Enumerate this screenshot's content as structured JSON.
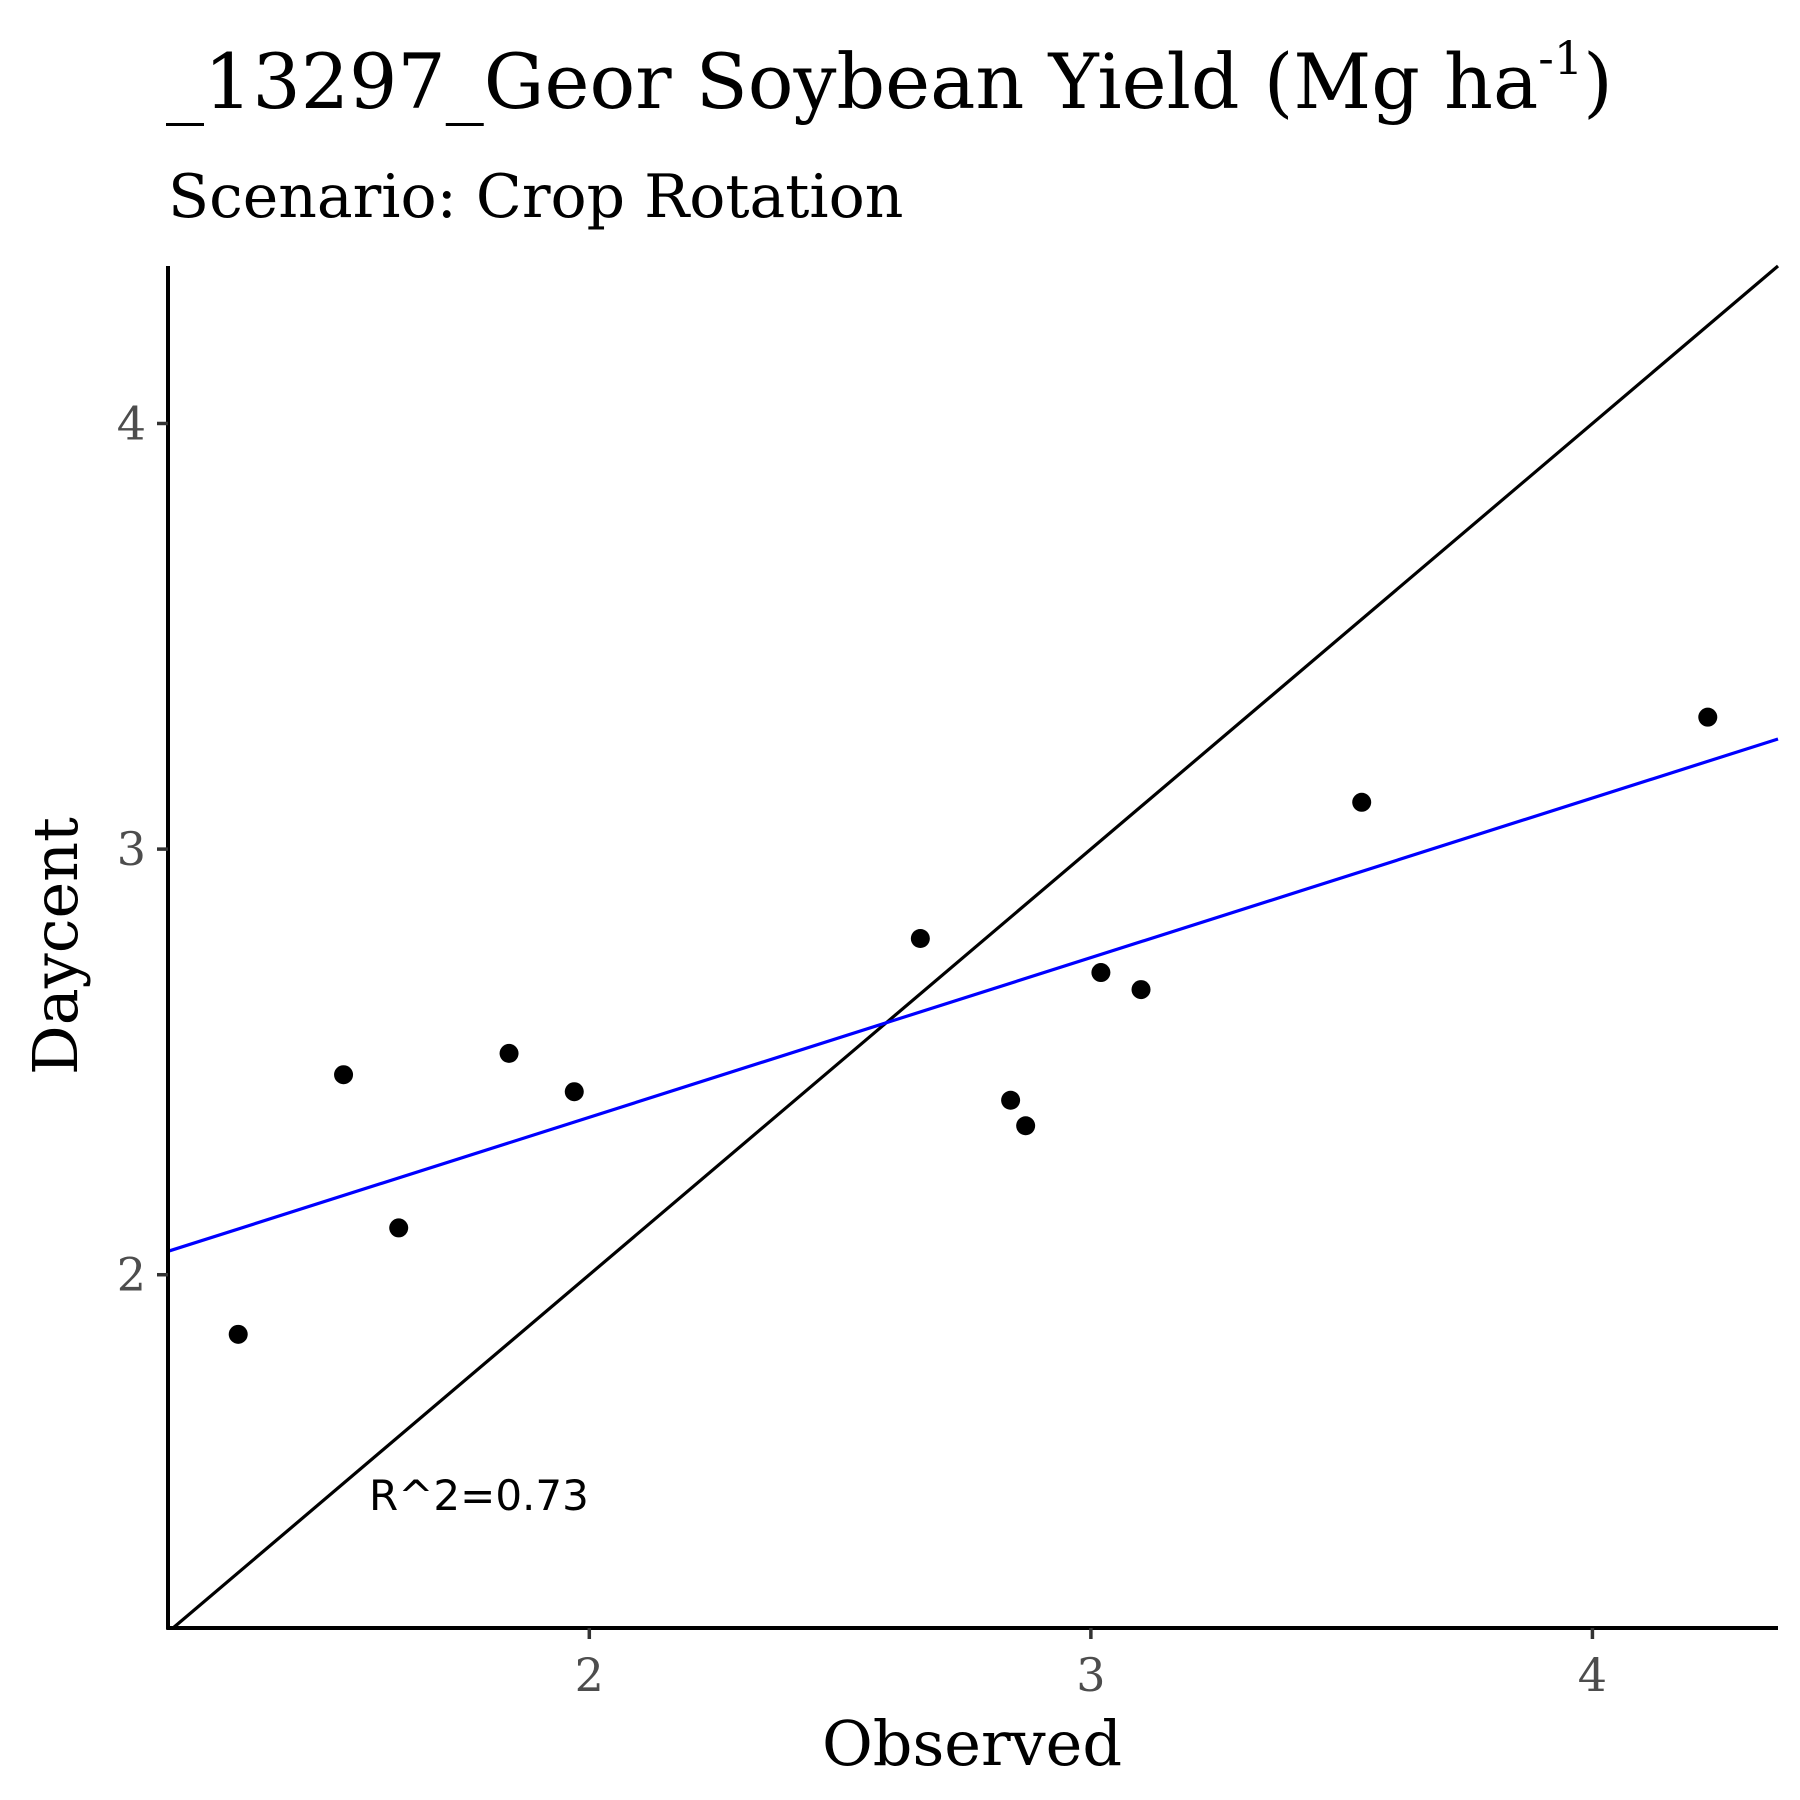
{
  "chart_data": {
    "type": "scatter",
    "title": {
      "main": "_13297_Geor Soybean Yield (Mg ha",
      "superscript": "-1",
      "suffix": ")"
    },
    "subtitle": "Scenario: Crop Rotation",
    "xlabel": "Observed",
    "ylabel": "Daycent",
    "xlim": [
      1.16,
      4.37
    ],
    "ylim": [
      1.17,
      4.37
    ],
    "x_ticks": [
      2,
      3,
      4
    ],
    "y_ticks": [
      2,
      3,
      4
    ],
    "grid": false,
    "points": [
      {
        "x": 1.3,
        "y": 1.86
      },
      {
        "x": 1.51,
        "y": 2.47
      },
      {
        "x": 1.62,
        "y": 2.11
      },
      {
        "x": 1.84,
        "y": 2.52
      },
      {
        "x": 1.97,
        "y": 2.43
      },
      {
        "x": 2.66,
        "y": 2.79
      },
      {
        "x": 2.84,
        "y": 2.41
      },
      {
        "x": 2.87,
        "y": 2.35
      },
      {
        "x": 3.02,
        "y": 2.71
      },
      {
        "x": 3.1,
        "y": 2.67
      },
      {
        "x": 3.54,
        "y": 3.11
      },
      {
        "x": 4.23,
        "y": 3.31
      }
    ],
    "identity_line": {
      "color": "#000000"
    },
    "regression_line": {
      "color": "#0000ff",
      "intercept": 1.62,
      "slope": 0.375
    },
    "annotation": {
      "text": "R^2=0.73",
      "x": 1.78,
      "y": 1.48
    }
  }
}
